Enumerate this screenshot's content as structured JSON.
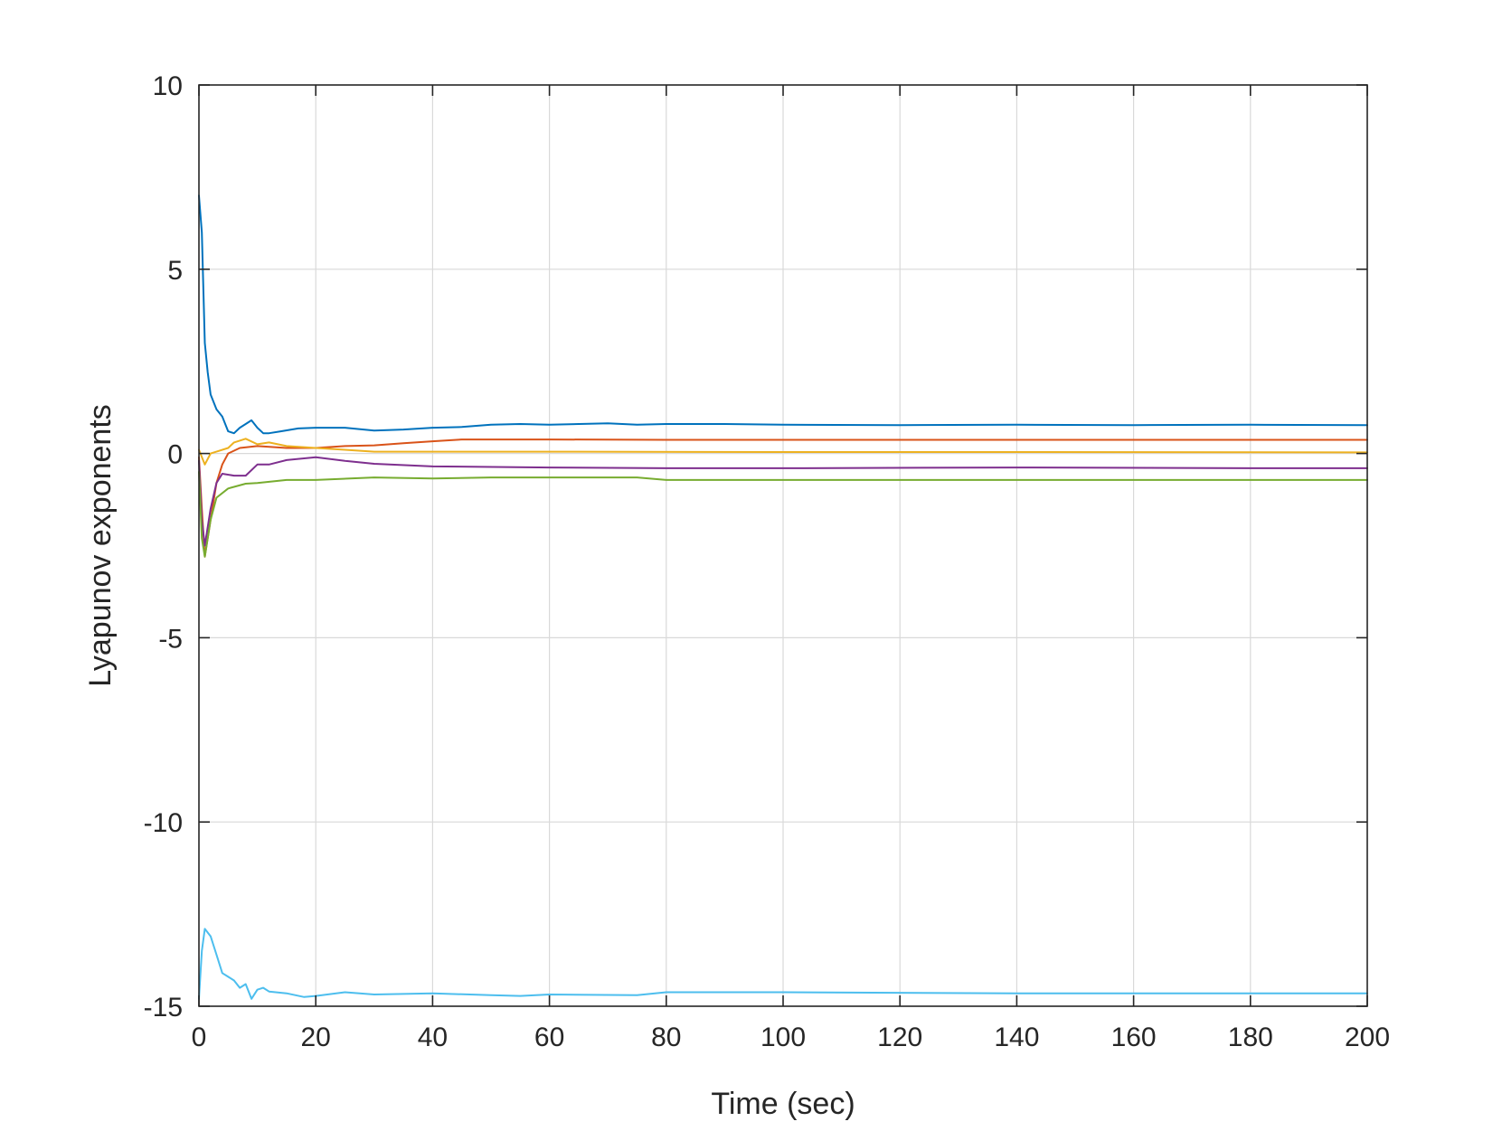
{
  "chart_data": {
    "type": "line",
    "title": "",
    "xlabel": "Time (sec)",
    "ylabel": "Lyapunov exponents",
    "xlim": [
      0,
      200
    ],
    "ylim": [
      -15,
      10
    ],
    "xticks": [
      0,
      20,
      40,
      60,
      80,
      100,
      120,
      140,
      160,
      180,
      200
    ],
    "yticks": [
      10,
      5,
      0,
      -5,
      -10,
      -15
    ],
    "xtick_labels": [
      "0",
      "20",
      "40",
      "60",
      "80",
      "100",
      "120",
      "140",
      "160",
      "180",
      "200"
    ],
    "ytick_labels": [
      "10",
      "5",
      "0",
      "-5",
      "-10",
      "-15"
    ],
    "grid": true,
    "legend": "none",
    "series": [
      {
        "color": "#0072bd",
        "points": [
          [
            0,
            7.0
          ],
          [
            0.5,
            6.0
          ],
          [
            1,
            3.0
          ],
          [
            1.5,
            2.2
          ],
          [
            2,
            1.6
          ],
          [
            3,
            1.2
          ],
          [
            4,
            1.0
          ],
          [
            5,
            0.6
          ],
          [
            6,
            0.55
          ],
          [
            7,
            0.7
          ],
          [
            8,
            0.8
          ],
          [
            9,
            0.9
          ],
          [
            10,
            0.7
          ],
          [
            11,
            0.55
          ],
          [
            12,
            0.55
          ],
          [
            14,
            0.6
          ],
          [
            17,
            0.68
          ],
          [
            20,
            0.7
          ],
          [
            25,
            0.7
          ],
          [
            30,
            0.62
          ],
          [
            35,
            0.65
          ],
          [
            40,
            0.7
          ],
          [
            45,
            0.72
          ],
          [
            50,
            0.78
          ],
          [
            55,
            0.8
          ],
          [
            60,
            0.78
          ],
          [
            65,
            0.8
          ],
          [
            70,
            0.82
          ],
          [
            75,
            0.78
          ],
          [
            80,
            0.8
          ],
          [
            90,
            0.8
          ],
          [
            100,
            0.78
          ],
          [
            120,
            0.77
          ],
          [
            140,
            0.78
          ],
          [
            160,
            0.77
          ],
          [
            180,
            0.78
          ],
          [
            200,
            0.77
          ]
        ]
      },
      {
        "color": "#d95319",
        "points": [
          [
            0,
            -0.1
          ],
          [
            0.5,
            -1.5
          ],
          [
            1,
            -2.8
          ],
          [
            2,
            -1.8
          ],
          [
            3,
            -0.8
          ],
          [
            4,
            -0.3
          ],
          [
            5,
            0.0
          ],
          [
            7,
            0.15
          ],
          [
            10,
            0.2
          ],
          [
            15,
            0.15
          ],
          [
            20,
            0.15
          ],
          [
            25,
            0.2
          ],
          [
            30,
            0.22
          ],
          [
            35,
            0.28
          ],
          [
            40,
            0.33
          ],
          [
            45,
            0.38
          ],
          [
            50,
            0.38
          ],
          [
            60,
            0.38
          ],
          [
            80,
            0.37
          ],
          [
            100,
            0.37
          ],
          [
            140,
            0.37
          ],
          [
            180,
            0.37
          ],
          [
            200,
            0.37
          ]
        ]
      },
      {
        "color": "#edb120",
        "points": [
          [
            0,
            0.1
          ],
          [
            1,
            -0.3
          ],
          [
            2,
            0.0
          ],
          [
            3,
            0.05
          ],
          [
            5,
            0.15
          ],
          [
            6,
            0.3
          ],
          [
            8,
            0.4
          ],
          [
            10,
            0.25
          ],
          [
            12,
            0.3
          ],
          [
            15,
            0.2
          ],
          [
            20,
            0.15
          ],
          [
            25,
            0.1
          ],
          [
            30,
            0.05
          ],
          [
            40,
            0.05
          ],
          [
            60,
            0.05
          ],
          [
            100,
            0.04
          ],
          [
            140,
            0.04
          ],
          [
            200,
            0.03
          ]
        ]
      },
      {
        "color": "#7e2f8e",
        "points": [
          [
            0,
            -0.2
          ],
          [
            0.5,
            -1.8
          ],
          [
            1,
            -2.5
          ],
          [
            2,
            -1.5
          ],
          [
            3,
            -0.8
          ],
          [
            4,
            -0.55
          ],
          [
            6,
            -0.6
          ],
          [
            8,
            -0.6
          ],
          [
            10,
            -0.3
          ],
          [
            12,
            -0.3
          ],
          [
            15,
            -0.18
          ],
          [
            20,
            -0.1
          ],
          [
            25,
            -0.2
          ],
          [
            30,
            -0.28
          ],
          [
            40,
            -0.35
          ],
          [
            60,
            -0.38
          ],
          [
            80,
            -0.4
          ],
          [
            100,
            -0.4
          ],
          [
            140,
            -0.38
          ],
          [
            180,
            -0.4
          ],
          [
            200,
            -0.4
          ]
        ]
      },
      {
        "color": "#77ac30",
        "points": [
          [
            0,
            -0.5
          ],
          [
            0.5,
            -2.3
          ],
          [
            1,
            -2.8
          ],
          [
            2,
            -1.8
          ],
          [
            3,
            -1.2
          ],
          [
            5,
            -0.95
          ],
          [
            8,
            -0.82
          ],
          [
            10,
            -0.8
          ],
          [
            15,
            -0.72
          ],
          [
            20,
            -0.72
          ],
          [
            30,
            -0.65
          ],
          [
            40,
            -0.68
          ],
          [
            50,
            -0.65
          ],
          [
            60,
            -0.65
          ],
          [
            75,
            -0.65
          ],
          [
            80,
            -0.72
          ],
          [
            100,
            -0.72
          ],
          [
            140,
            -0.72
          ],
          [
            200,
            -0.72
          ]
        ]
      },
      {
        "color": "#4dbeee",
        "points": [
          [
            0,
            -14.8
          ],
          [
            0.5,
            -13.5
          ],
          [
            1,
            -12.9
          ],
          [
            2,
            -13.1
          ],
          [
            3,
            -13.6
          ],
          [
            4,
            -14.1
          ],
          [
            5,
            -14.2
          ],
          [
            6,
            -14.3
          ],
          [
            7,
            -14.5
          ],
          [
            8,
            -14.4
          ],
          [
            9,
            -14.8
          ],
          [
            10,
            -14.55
          ],
          [
            11,
            -14.5
          ],
          [
            12,
            -14.6
          ],
          [
            15,
            -14.65
          ],
          [
            18,
            -14.75
          ],
          [
            20,
            -14.72
          ],
          [
            25,
            -14.62
          ],
          [
            30,
            -14.68
          ],
          [
            40,
            -14.65
          ],
          [
            50,
            -14.7
          ],
          [
            55,
            -14.72
          ],
          [
            60,
            -14.68
          ],
          [
            75,
            -14.7
          ],
          [
            80,
            -14.62
          ],
          [
            100,
            -14.62
          ],
          [
            140,
            -14.65
          ],
          [
            200,
            -14.65
          ]
        ]
      }
    ]
  }
}
